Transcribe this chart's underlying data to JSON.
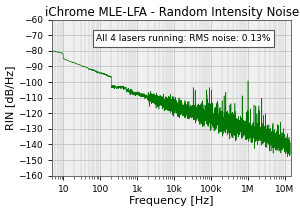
{
  "title": "iChrome MLE-LFA - Random Intensity Noise",
  "xlabel": "Frequency [Hz]",
  "ylabel": "RIN [dB/Hz]",
  "annotation": "All 4 lasers running: RMS noise: 0.13%",
  "xlim": [
    5,
    15000000.0
  ],
  "ylim": [
    -160,
    -60
  ],
  "yticks": [
    -160,
    -150,
    -140,
    -130,
    -120,
    -110,
    -100,
    -90,
    -80,
    -70,
    -60
  ],
  "xtick_labels": [
    "10",
    "100",
    "1k",
    "10k",
    "100k",
    "1M",
    "10M"
  ],
  "xtick_vals": [
    10,
    100,
    1000,
    10000,
    100000,
    1000000,
    10000000
  ],
  "line_color": "#007700",
  "bg_color": "#f0f0f0",
  "grid_color": "#bbbbbb",
  "title_fontsize": 8.5,
  "label_fontsize": 8,
  "tick_fontsize": 6.5,
  "annot_fontsize": 6.5
}
